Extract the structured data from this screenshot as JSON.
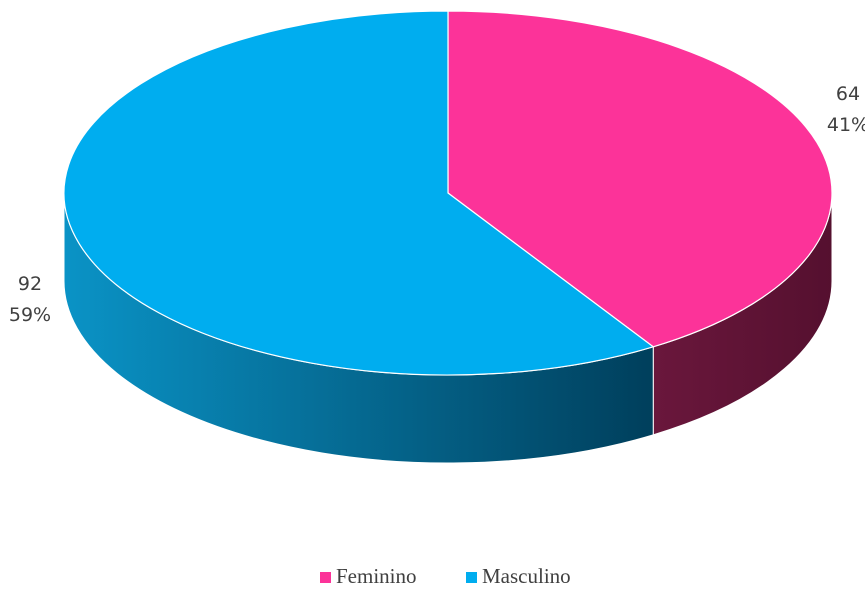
{
  "chart_data": {
    "type": "pie3d",
    "categories": [
      "Feminino",
      "Masculino"
    ],
    "values": [
      64,
      92
    ],
    "percent_labels": [
      "41%",
      "59%"
    ],
    "colors": [
      "#fc3399",
      "#00adef"
    ],
    "legend": "bottom"
  }
}
